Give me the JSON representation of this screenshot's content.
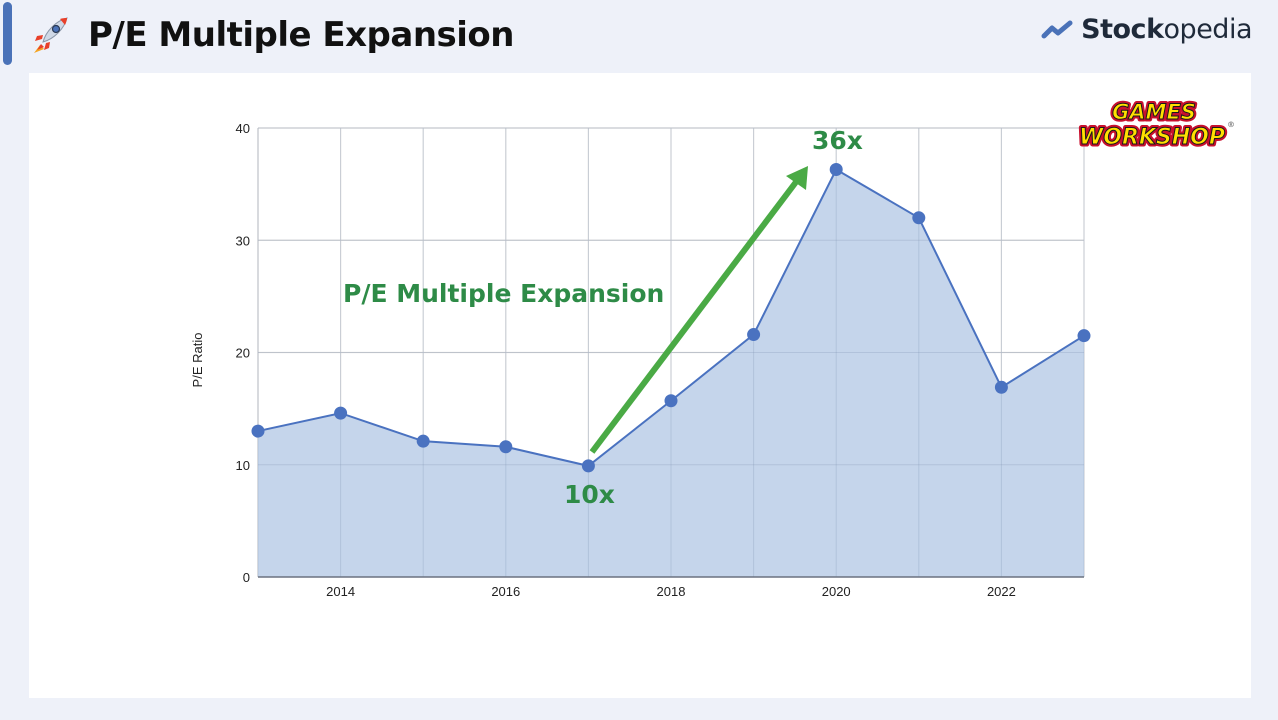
{
  "header": {
    "icon": "rocket-icon",
    "title": "P/E Multiple Expansion",
    "brand": {
      "bold": "Stock",
      "light": "opedia",
      "icon": "stockopedia-logo-icon",
      "icon_color": "#4a72b8"
    }
  },
  "logo": {
    "line1": "GAMES",
    "line2": "WORKSHOP",
    "mark": "®"
  },
  "annotations": {
    "headline": "P/E Multiple Expansion",
    "low_label": "10x",
    "high_label": "36x",
    "color": "#2e8b47",
    "arrow_color": "#4aaa45"
  },
  "chart_data": {
    "type": "area",
    "title": "",
    "xlabel": "",
    "ylabel": "P/E Ratio",
    "x": [
      2013,
      2014,
      2015,
      2016,
      2017,
      2018,
      2019,
      2020,
      2021,
      2022,
      2023
    ],
    "series": [
      {
        "name": "P/E Ratio",
        "values": [
          13.0,
          14.6,
          12.1,
          11.6,
          9.9,
          15.7,
          21.6,
          36.3,
          32.0,
          16.9,
          21.5
        ],
        "color": "#4a72c0",
        "fill": "#c5d5eb"
      }
    ],
    "x_tick_labels": [
      "2014",
      "2016",
      "2018",
      "2020",
      "2022"
    ],
    "y_tick_labels": [
      "0",
      "10",
      "20",
      "30",
      "40"
    ],
    "ylim": [
      0,
      40
    ],
    "xlim": [
      2013,
      2023
    ],
    "grid": true,
    "legend": "none"
  }
}
